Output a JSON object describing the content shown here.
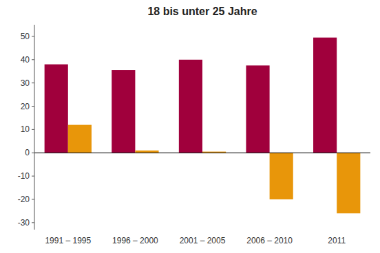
{
  "chart_data": {
    "type": "bar",
    "title": "18 bis unter 25 Jahre",
    "categories": [
      "1991 – 1995",
      "1996 – 2000",
      "2001 – 2005",
      "2006 – 2010",
      "2011"
    ],
    "series": [
      {
        "color": "#A0003C",
        "values": [
          38,
          35.5,
          40,
          37.5,
          49.5
        ]
      },
      {
        "color": "#E8960A",
        "values": [
          12,
          1,
          0.5,
          -20,
          -26
        ]
      }
    ],
    "ylim": [
      -33,
      55
    ],
    "yticks": [
      -30,
      -20,
      -10,
      0,
      10,
      20,
      30,
      40,
      50
    ],
    "grid": false
  }
}
